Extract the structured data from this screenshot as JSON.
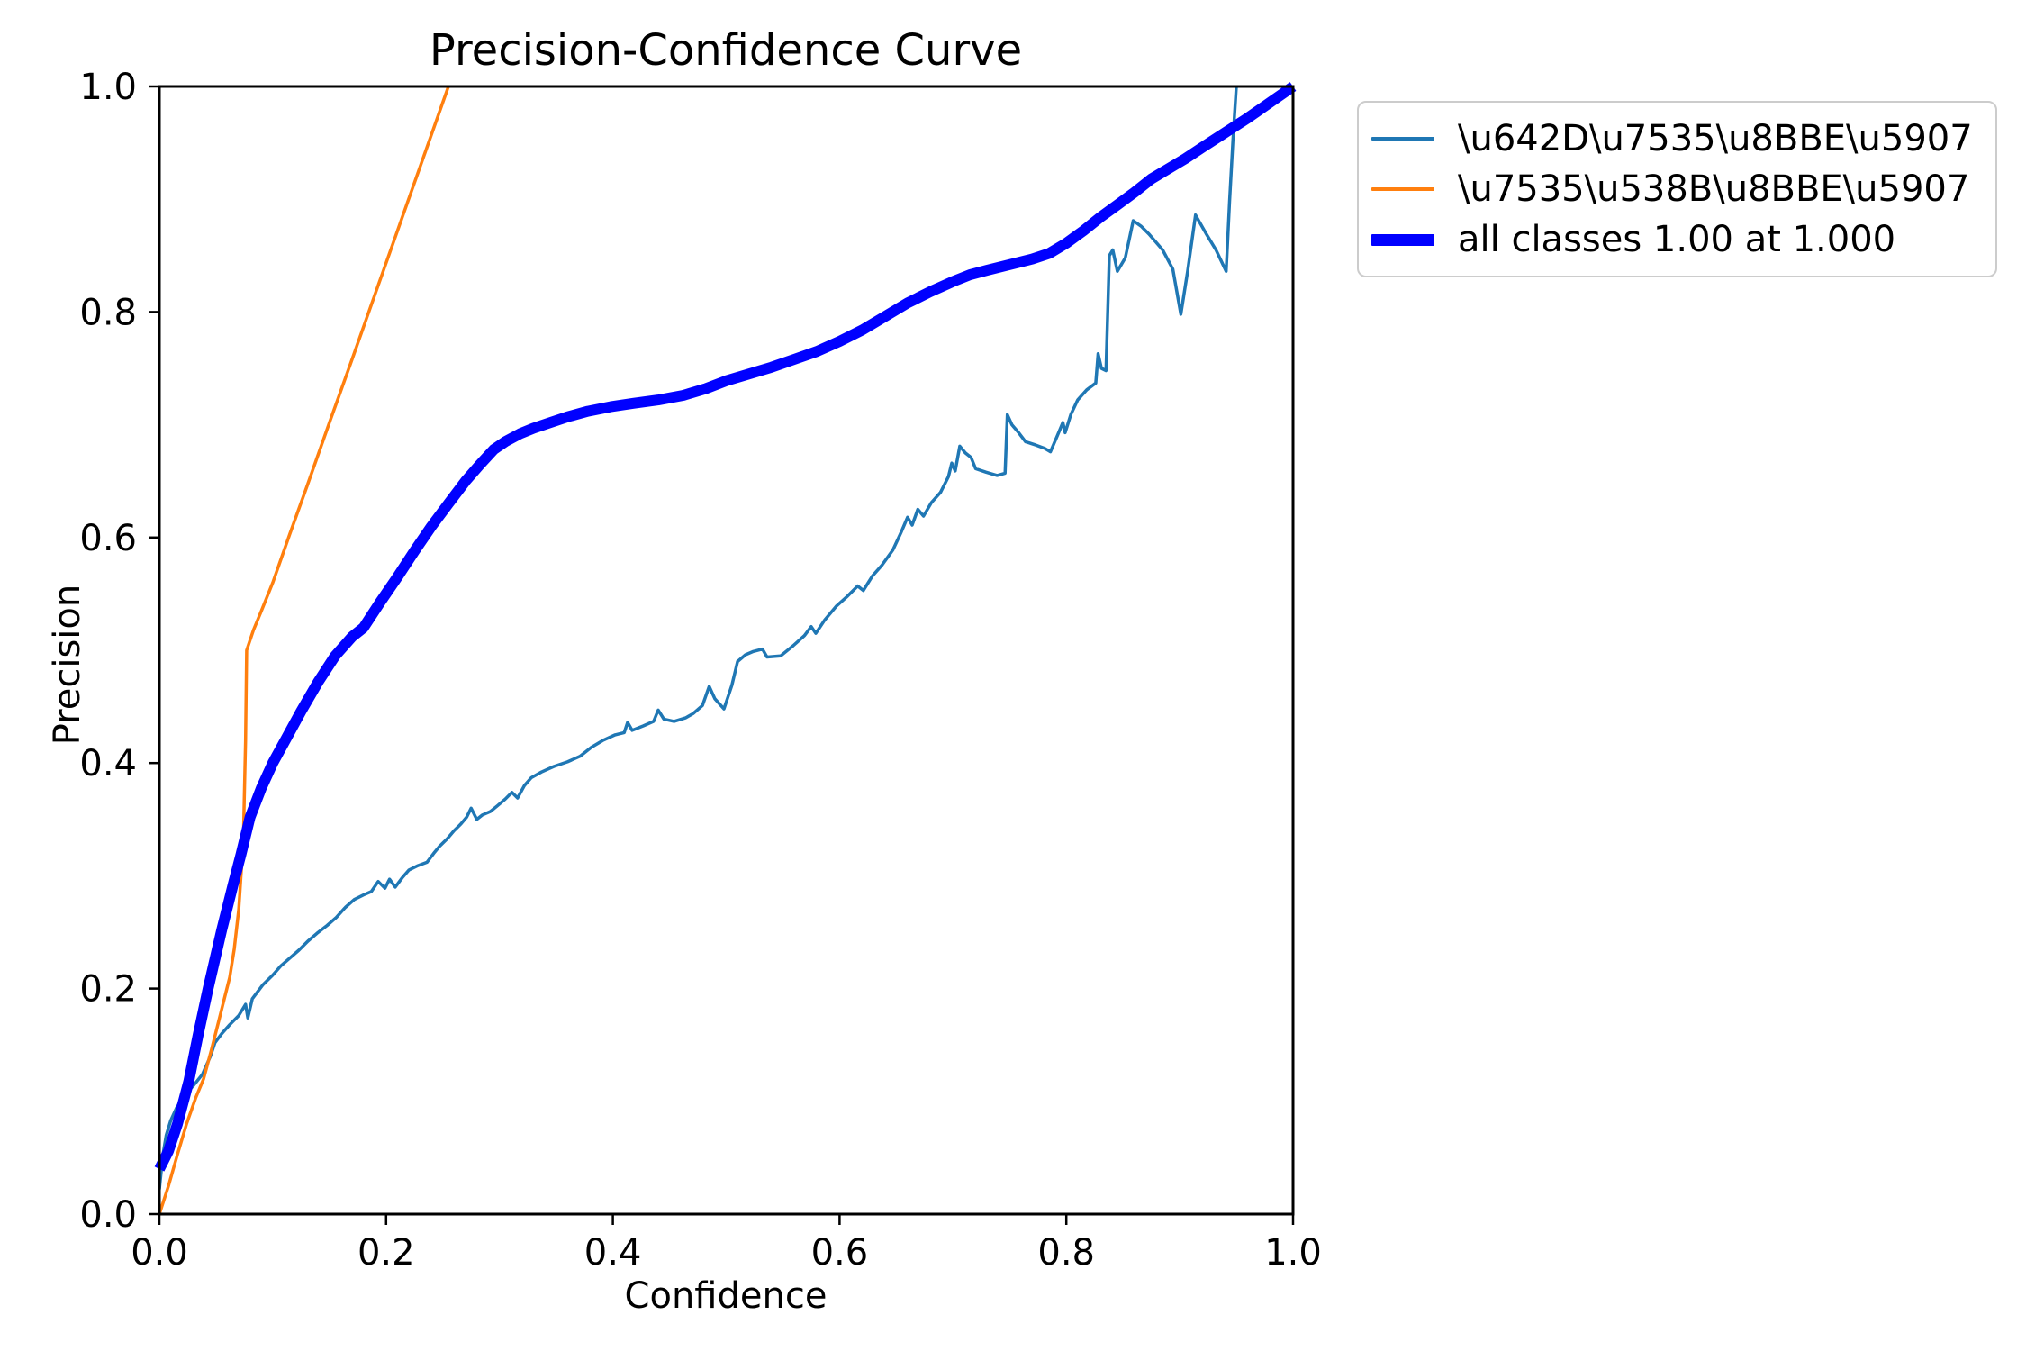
{
  "figure": {
    "title": "Precision-Confidence Curve",
    "xlabel": "Confidence",
    "ylabel": "Precision"
  },
  "legend": {
    "entries": [
      {
        "label": "\\u642D\\u7535\\u8BBE\\u5907",
        "color": "#1f77b4",
        "thickness": 4
      },
      {
        "label": "\\u7535\\u538B\\u8BBE\\u5907",
        "color": "#ff7f0e",
        "thickness": 4
      },
      {
        "label": "all classes 1.00 at 1.000",
        "color": "#0000ff",
        "thickness": 13
      }
    ]
  },
  "chart_data": {
    "type": "line",
    "title": "Precision-Confidence Curve",
    "xlabel": "Confidence",
    "ylabel": "Precision",
    "xlim": [
      0.0,
      1.0
    ],
    "ylim": [
      0.0,
      1.0
    ],
    "grid": false,
    "legend_position": "outside upper right",
    "xticks": [
      {
        "v": 0.0,
        "label": "0.0"
      },
      {
        "v": 0.2,
        "label": "0.2"
      },
      {
        "v": 0.4,
        "label": "0.4"
      },
      {
        "v": 0.6,
        "label": "0.6"
      },
      {
        "v": 0.8,
        "label": "0.8"
      },
      {
        "v": 1.0,
        "label": "1.0"
      }
    ],
    "yticks": [
      {
        "v": 0.0,
        "label": "0.0"
      },
      {
        "v": 0.2,
        "label": "0.2"
      },
      {
        "v": 0.4,
        "label": "0.4"
      },
      {
        "v": 0.6,
        "label": "0.6"
      },
      {
        "v": 0.8,
        "label": "0.8"
      },
      {
        "v": 1.0,
        "label": "1.0"
      }
    ],
    "series": [
      {
        "name": "\\u642D\\u7535\\u8BBE\\u5907",
        "color": "#1f77b4",
        "width": 3.5,
        "points": [
          [
            0.0,
            0.022
          ],
          [
            0.003,
            0.052
          ],
          [
            0.006,
            0.07
          ],
          [
            0.01,
            0.083
          ],
          [
            0.015,
            0.094
          ],
          [
            0.022,
            0.105
          ],
          [
            0.03,
            0.114
          ],
          [
            0.038,
            0.124
          ],
          [
            0.045,
            0.14
          ],
          [
            0.049,
            0.152
          ],
          [
            0.055,
            0.16
          ],
          [
            0.062,
            0.168
          ],
          [
            0.07,
            0.176
          ],
          [
            0.076,
            0.186
          ],
          [
            0.078,
            0.174
          ],
          [
            0.082,
            0.191
          ],
          [
            0.091,
            0.203
          ],
          [
            0.1,
            0.212
          ],
          [
            0.107,
            0.22
          ],
          [
            0.115,
            0.227
          ],
          [
            0.123,
            0.234
          ],
          [
            0.131,
            0.242
          ],
          [
            0.139,
            0.249
          ],
          [
            0.148,
            0.256
          ],
          [
            0.156,
            0.263
          ],
          [
            0.164,
            0.272
          ],
          [
            0.172,
            0.279
          ],
          [
            0.18,
            0.283
          ],
          [
            0.187,
            0.286
          ],
          [
            0.193,
            0.295
          ],
          [
            0.199,
            0.289
          ],
          [
            0.203,
            0.297
          ],
          [
            0.208,
            0.29
          ],
          [
            0.214,
            0.298
          ],
          [
            0.22,
            0.305
          ],
          [
            0.228,
            0.309
          ],
          [
            0.236,
            0.312
          ],
          [
            0.242,
            0.32
          ],
          [
            0.247,
            0.326
          ],
          [
            0.254,
            0.333
          ],
          [
            0.26,
            0.34
          ],
          [
            0.266,
            0.346
          ],
          [
            0.271,
            0.352
          ],
          [
            0.275,
            0.36
          ],
          [
            0.28,
            0.35
          ],
          [
            0.285,
            0.354
          ],
          [
            0.292,
            0.357
          ],
          [
            0.298,
            0.362
          ],
          [
            0.305,
            0.368
          ],
          [
            0.311,
            0.374
          ],
          [
            0.316,
            0.369
          ],
          [
            0.322,
            0.38
          ],
          [
            0.328,
            0.387
          ],
          [
            0.337,
            0.392
          ],
          [
            0.348,
            0.397
          ],
          [
            0.36,
            0.401
          ],
          [
            0.371,
            0.406
          ],
          [
            0.381,
            0.414
          ],
          [
            0.391,
            0.42
          ],
          [
            0.402,
            0.425
          ],
          [
            0.41,
            0.427
          ],
          [
            0.413,
            0.436
          ],
          [
            0.417,
            0.429
          ],
          [
            0.427,
            0.433
          ],
          [
            0.436,
            0.437
          ],
          [
            0.44,
            0.447
          ],
          [
            0.445,
            0.439
          ],
          [
            0.454,
            0.437
          ],
          [
            0.464,
            0.44
          ],
          [
            0.471,
            0.444
          ],
          [
            0.479,
            0.451
          ],
          [
            0.485,
            0.468
          ],
          [
            0.49,
            0.457
          ],
          [
            0.498,
            0.448
          ],
          [
            0.505,
            0.469
          ],
          [
            0.51,
            0.49
          ],
          [
            0.517,
            0.496
          ],
          [
            0.524,
            0.499
          ],
          [
            0.532,
            0.501
          ],
          [
            0.536,
            0.494
          ],
          [
            0.548,
            0.495
          ],
          [
            0.559,
            0.504
          ],
          [
            0.569,
            0.513
          ],
          [
            0.575,
            0.521
          ],
          [
            0.579,
            0.515
          ],
          [
            0.587,
            0.527
          ],
          [
            0.597,
            0.539
          ],
          [
            0.607,
            0.548
          ],
          [
            0.616,
            0.557
          ],
          [
            0.621,
            0.553
          ],
          [
            0.629,
            0.566
          ],
          [
            0.637,
            0.575
          ],
          [
            0.647,
            0.589
          ],
          [
            0.654,
            0.604
          ],
          [
            0.66,
            0.618
          ],
          [
            0.664,
            0.611
          ],
          [
            0.669,
            0.625
          ],
          [
            0.674,
            0.619
          ],
          [
            0.681,
            0.631
          ],
          [
            0.689,
            0.64
          ],
          [
            0.696,
            0.654
          ],
          [
            0.699,
            0.666
          ],
          [
            0.702,
            0.659
          ],
          [
            0.706,
            0.681
          ],
          [
            0.711,
            0.675
          ],
          [
            0.716,
            0.671
          ],
          [
            0.72,
            0.661
          ],
          [
            0.729,
            0.658
          ],
          [
            0.739,
            0.655
          ],
          [
            0.746,
            0.657
          ],
          [
            0.748,
            0.709
          ],
          [
            0.752,
            0.7
          ],
          [
            0.758,
            0.693
          ],
          [
            0.764,
            0.685
          ],
          [
            0.773,
            0.682
          ],
          [
            0.781,
            0.679
          ],
          [
            0.786,
            0.676
          ],
          [
            0.792,
            0.69
          ],
          [
            0.797,
            0.702
          ],
          [
            0.799,
            0.693
          ],
          [
            0.804,
            0.709
          ],
          [
            0.81,
            0.722
          ],
          [
            0.818,
            0.731
          ],
          [
            0.826,
            0.737
          ],
          [
            0.828,
            0.763
          ],
          [
            0.831,
            0.75
          ],
          [
            0.835,
            0.748
          ],
          [
            0.838,
            0.85
          ],
          [
            0.841,
            0.855
          ],
          [
            0.845,
            0.836
          ],
          [
            0.852,
            0.848
          ],
          [
            0.859,
            0.881
          ],
          [
            0.866,
            0.876
          ],
          [
            0.873,
            0.869
          ],
          [
            0.885,
            0.855
          ],
          [
            0.894,
            0.838
          ],
          [
            0.901,
            0.798
          ],
          [
            0.907,
            0.836
          ],
          [
            0.914,
            0.886
          ],
          [
            0.923,
            0.87
          ],
          [
            0.932,
            0.855
          ],
          [
            0.941,
            0.836
          ],
          [
            0.944,
            0.898
          ],
          [
            0.947,
            0.953
          ],
          [
            0.95,
            1.0
          ]
        ]
      },
      {
        "name": "\\u7535\\u538B\\u8BBE\\u5907",
        "color": "#ff7f0e",
        "width": 3.5,
        "points": [
          [
            0.0,
            0.0
          ],
          [
            0.008,
            0.025
          ],
          [
            0.016,
            0.053
          ],
          [
            0.024,
            0.08
          ],
          [
            0.032,
            0.103
          ],
          [
            0.039,
            0.12
          ],
          [
            0.046,
            0.146
          ],
          [
            0.052,
            0.17
          ],
          [
            0.057,
            0.19
          ],
          [
            0.062,
            0.21
          ],
          [
            0.066,
            0.235
          ],
          [
            0.07,
            0.27
          ],
          [
            0.072,
            0.3
          ],
          [
            0.074,
            0.33
          ],
          [
            0.076,
            0.42
          ],
          [
            0.077,
            0.5
          ],
          [
            0.083,
            0.518
          ],
          [
            0.09,
            0.535
          ],
          [
            0.1,
            0.56
          ],
          [
            0.115,
            0.603
          ],
          [
            0.13,
            0.645
          ],
          [
            0.15,
            0.702
          ],
          [
            0.17,
            0.758
          ],
          [
            0.19,
            0.815
          ],
          [
            0.21,
            0.872
          ],
          [
            0.23,
            0.929
          ],
          [
            0.255,
            1.0
          ]
        ]
      },
      {
        "name": "all classes 1.00 at 1.000",
        "color": "#0000ff",
        "width": 12,
        "points": [
          [
            0.0,
            0.04
          ],
          [
            0.008,
            0.056
          ],
          [
            0.016,
            0.08
          ],
          [
            0.026,
            0.118
          ],
          [
            0.034,
            0.158
          ],
          [
            0.043,
            0.2
          ],
          [
            0.055,
            0.252
          ],
          [
            0.065,
            0.292
          ],
          [
            0.072,
            0.319
          ],
          [
            0.08,
            0.352
          ],
          [
            0.09,
            0.378
          ],
          [
            0.1,
            0.4
          ],
          [
            0.112,
            0.422
          ],
          [
            0.125,
            0.446
          ],
          [
            0.14,
            0.472
          ],
          [
            0.155,
            0.495
          ],
          [
            0.17,
            0.512
          ],
          [
            0.18,
            0.52
          ],
          [
            0.195,
            0.543
          ],
          [
            0.21,
            0.565
          ],
          [
            0.225,
            0.588
          ],
          [
            0.24,
            0.61
          ],
          [
            0.255,
            0.63
          ],
          [
            0.27,
            0.65
          ],
          [
            0.283,
            0.665
          ],
          [
            0.295,
            0.678
          ],
          [
            0.305,
            0.685
          ],
          [
            0.318,
            0.692
          ],
          [
            0.33,
            0.697
          ],
          [
            0.345,
            0.702
          ],
          [
            0.36,
            0.707
          ],
          [
            0.378,
            0.712
          ],
          [
            0.398,
            0.716
          ],
          [
            0.418,
            0.719
          ],
          [
            0.44,
            0.722
          ],
          [
            0.462,
            0.726
          ],
          [
            0.482,
            0.732
          ],
          [
            0.5,
            0.739
          ],
          [
            0.52,
            0.745
          ],
          [
            0.54,
            0.751
          ],
          [
            0.56,
            0.758
          ],
          [
            0.58,
            0.765
          ],
          [
            0.6,
            0.774
          ],
          [
            0.62,
            0.784
          ],
          [
            0.64,
            0.796
          ],
          [
            0.66,
            0.808
          ],
          [
            0.68,
            0.818
          ],
          [
            0.7,
            0.827
          ],
          [
            0.715,
            0.833
          ],
          [
            0.73,
            0.837
          ],
          [
            0.75,
            0.842
          ],
          [
            0.77,
            0.847
          ],
          [
            0.785,
            0.852
          ],
          [
            0.8,
            0.861
          ],
          [
            0.815,
            0.872
          ],
          [
            0.83,
            0.884
          ],
          [
            0.845,
            0.895
          ],
          [
            0.86,
            0.906
          ],
          [
            0.875,
            0.918
          ],
          [
            0.89,
            0.927
          ],
          [
            0.905,
            0.936
          ],
          [
            0.92,
            0.946
          ],
          [
            0.94,
            0.959
          ],
          [
            0.96,
            0.972
          ],
          [
            0.98,
            0.986
          ],
          [
            1.0,
            1.0
          ]
        ]
      }
    ]
  }
}
